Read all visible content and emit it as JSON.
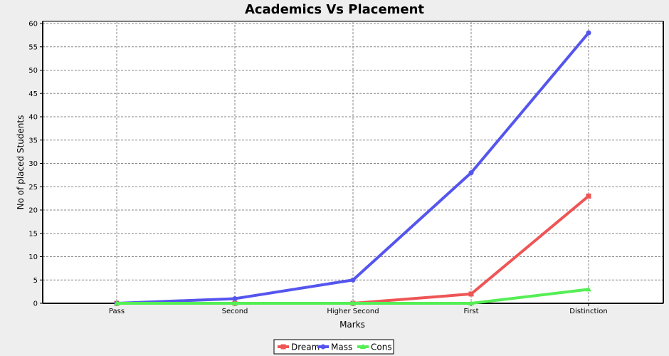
{
  "chart_data": {
    "type": "line",
    "title": "Academics Vs Placement",
    "xlabel": "Marks",
    "ylabel": "No of placed Students",
    "categories": [
      "Pass",
      "Second",
      "Higher Second",
      "First",
      "Distinction"
    ],
    "ylim": [
      0,
      60
    ],
    "yticks": [
      "0",
      "5",
      "10",
      "15",
      "20",
      "25",
      "30",
      "35",
      "40",
      "45",
      "50",
      "55",
      "60"
    ],
    "grid": true,
    "legend_position": "bottom",
    "series": [
      {
        "name": "Dream",
        "color": "#ee5555",
        "marker": "square",
        "values": [
          0,
          0,
          0,
          2,
          23
        ]
      },
      {
        "name": "Mass",
        "color": "#5555ee",
        "marker": "circle",
        "values": [
          0,
          1,
          5,
          28,
          58
        ]
      },
      {
        "name": "Cons",
        "color": "#55ee55",
        "marker": "triangle",
        "values": [
          0,
          0,
          0,
          0,
          3
        ]
      }
    ]
  }
}
